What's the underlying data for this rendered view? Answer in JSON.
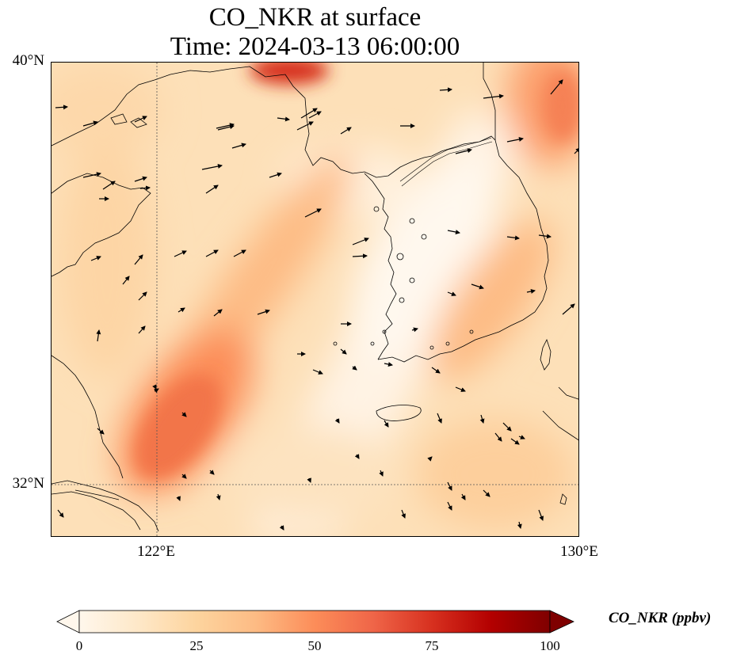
{
  "title": {
    "line1": "CO_NKR at surface",
    "line2": "Time: 2024-03-13 06:00:00"
  },
  "axes": {
    "lat_ticks": [
      "40°N",
      "32°N"
    ],
    "lon_ticks": [
      "122°E",
      "130°E"
    ],
    "lat_range": [
      31,
      40
    ],
    "lon_range": [
      120,
      130
    ]
  },
  "colorbar": {
    "label": "CO_NKR (ppbv)",
    "ticks": [
      "0",
      "25",
      "50",
      "75",
      "100"
    ],
    "min": 0,
    "max": 100,
    "extend": "both",
    "colormap": "OrRd",
    "colors": [
      "#fff7ec",
      "#fee8c8",
      "#fdd49e",
      "#fdbb84",
      "#fc8d59",
      "#ef6548",
      "#d7301f",
      "#b30000",
      "#7f0000"
    ]
  },
  "map": {
    "gridlines": "dotted",
    "vectors": "wind arrows"
  }
}
